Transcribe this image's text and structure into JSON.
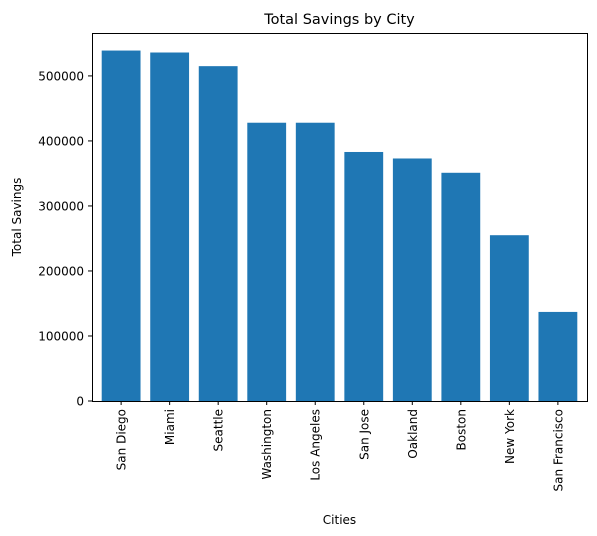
{
  "chart_data": {
    "type": "bar",
    "title": "Total Savings by City",
    "xlabel": "Cities",
    "ylabel": "Total Savings",
    "categories": [
      "San Diego",
      "Miami",
      "Seattle",
      "Washington",
      "Los Angeles",
      "San Jose",
      "Oakland",
      "Boston",
      "New York",
      "San Francisco"
    ],
    "values": [
      539000,
      536000,
      515000,
      428000,
      428000,
      383000,
      373000,
      351000,
      255000,
      137000
    ],
    "ylim": [
      0,
      566000
    ],
    "yticks": [
      0,
      100000,
      200000,
      300000,
      400000,
      500000
    ],
    "ytick_labels": [
      "0",
      "100000",
      "200000",
      "300000",
      "400000",
      "500000"
    ],
    "grid": false,
    "bar_color": "#1f77b4"
  }
}
